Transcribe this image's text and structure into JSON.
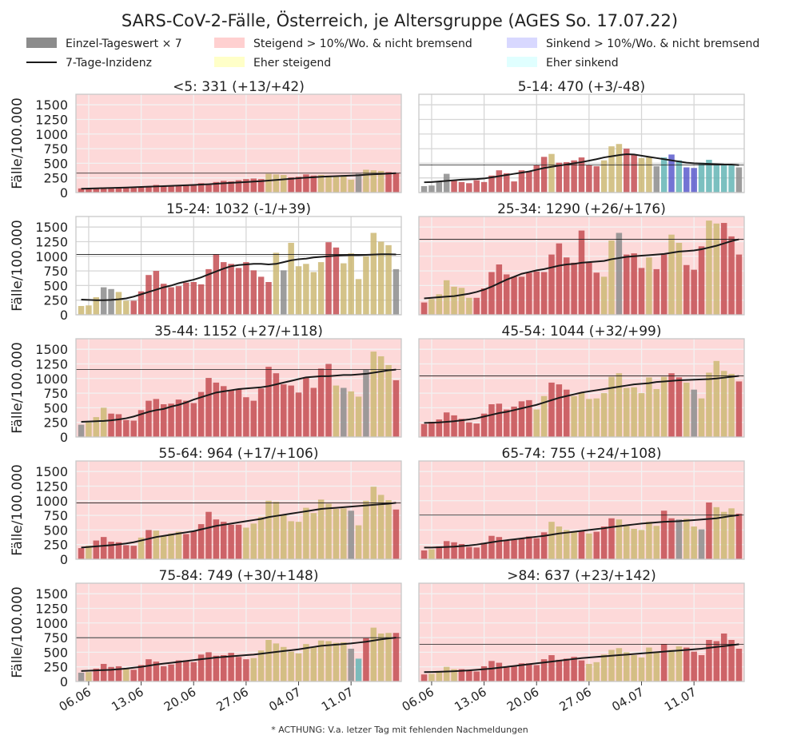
{
  "figure": {
    "title": "SARS-CoV-2-Fälle, Österreich, je Altersgruppe  (AGES So. 17.07.22)",
    "footnote": "* ACTHUNG: V.a. letzer Tag mit fehlenden Nachmeldungen",
    "ylabel": "Fälle/100.000"
  },
  "legend": {
    "bar": "Einzel-Tageswert × 7",
    "line": "7-Tage-Inzidenz",
    "up_strong": "Steigend > 10%/Wo. & nicht bremsend",
    "up_weak": "Eher steigend",
    "down_strong": "Sinkend > 10%/Wo. & nicht bremsend",
    "down_weak": "Eher sinkend"
  },
  "colors": {
    "bg_red": "#fdd9d9",
    "bar_red": "#c44e52",
    "bar_yellow": "#ccb974",
    "bar_blue": "#5a5acc",
    "bar_cyan": "#64b5b5",
    "bar_gray": "#8c8c8c",
    "patch_red": "#ffd0d0",
    "patch_yellow": "#ffffc8",
    "patch_blue": "#d8d8ff",
    "patch_cyan": "#e0ffff",
    "line": "#1a1a1a"
  },
  "chart_data": {
    "type": "bar",
    "x_ticks": [
      "06.06",
      "13.06",
      "20.06",
      "27.06",
      "04.07",
      "11.07"
    ],
    "dates": [
      "05.06",
      "06.06",
      "07.06",
      "08.06",
      "09.06",
      "10.06",
      "11.06",
      "12.06",
      "13.06",
      "14.06",
      "15.06",
      "16.06",
      "17.06",
      "18.06",
      "19.06",
      "20.06",
      "21.06",
      "22.06",
      "23.06",
      "24.06",
      "25.06",
      "26.06",
      "27.06",
      "28.06",
      "29.06",
      "30.06",
      "01.07",
      "02.07",
      "03.07",
      "04.07",
      "05.07",
      "06.07",
      "07.07",
      "08.07",
      "09.07",
      "10.07",
      "11.07",
      "12.07",
      "13.07",
      "14.07",
      "15.07",
      "16.07",
      "17.07"
    ],
    "y_ticks": [
      0,
      250,
      500,
      750,
      1000,
      1250,
      1500
    ],
    "ylim": [
      0,
      1680
    ],
    "panels": [
      {
        "label": "<5: 331 (+13/+42)",
        "background": "red",
        "ref": 331,
        "values": [
          70,
          75,
          80,
          85,
          85,
          80,
          80,
          80,
          90,
          100,
          130,
          115,
          110,
          120,
          120,
          140,
          160,
          150,
          180,
          200,
          190,
          210,
          230,
          240,
          230,
          320,
          310,
          300,
          260,
          270,
          310,
          290,
          300,
          290,
          270,
          300,
          220,
          320,
          390,
          380,
          370,
          350,
          330
        ],
        "colors": "rrrrrrrrrrrrrrrrrrrrrrrrryyyrrrryyyyygyyyrr",
        "incidence": [
          65,
          68,
          72,
          75,
          78,
          82,
          86,
          90,
          95,
          100,
          105,
          110,
          115,
          120,
          125,
          130,
          136,
          142,
          150,
          158,
          165,
          172,
          180,
          188,
          195,
          205,
          215,
          225,
          235,
          245,
          255,
          262,
          270,
          275,
          280,
          285,
          290,
          295,
          305,
          312,
          318,
          325,
          331
        ]
      },
      {
        "label": "5-14: 470 (+3/-48)",
        "background": "white",
        "ref": 470,
        "values": [
          110,
          120,
          190,
          320,
          200,
          180,
          160,
          210,
          180,
          290,
          380,
          330,
          190,
          380,
          360,
          470,
          610,
          660,
          510,
          520,
          550,
          600,
          470,
          450,
          550,
          790,
          830,
          750,
          650,
          590,
          600,
          450,
          600,
          650,
          550,
          430,
          420,
          510,
          560,
          470,
          470,
          470,
          430
        ],
        "colors": "ggggrrrrrrrrrrrrryrrrrrryyyrryygcbcbbcccccg",
        "incidence": [
          175,
          180,
          190,
          200,
          210,
          220,
          225,
          230,
          240,
          260,
          280,
          300,
          320,
          340,
          360,
          390,
          420,
          440,
          460,
          480,
          500,
          520,
          545,
          570,
          600,
          620,
          640,
          655,
          650,
          630,
          610,
          590,
          570,
          550,
          530,
          510,
          500,
          495,
          490,
          485,
          480,
          478,
          470
        ]
      },
      {
        "label": "15-24: 1032 (-1/+39)",
        "background": "white",
        "ref": 1032,
        "values": [
          150,
          160,
          300,
          470,
          440,
          390,
          240,
          240,
          400,
          680,
          750,
          530,
          470,
          490,
          550,
          560,
          520,
          780,
          1030,
          900,
          870,
          800,
          900,
          760,
          650,
          560,
          1060,
          760,
          1230,
          830,
          870,
          730,
          900,
          1240,
          1150,
          880,
          1050,
          610,
          1000,
          1400,
          1250,
          1190,
          780
        ],
        "colors": "yyyggyyrrrrrrrrrrrrrrrrrrrygyyyyyrryyyyyyyg",
        "incidence": [
          260,
          255,
          250,
          250,
          255,
          265,
          280,
          310,
          350,
          390,
          430,
          470,
          500,
          540,
          570,
          600,
          640,
          690,
          740,
          790,
          830,
          850,
          860,
          870,
          870,
          860,
          870,
          900,
          930,
          950,
          960,
          980,
          990,
          1000,
          1010,
          1015,
          1020,
          1020,
          1025,
          1030,
          1035,
          1035,
          1032
        ]
      },
      {
        "label": "25-34: 1290 (+26/+176)",
        "background": "red",
        "ref": 1290,
        "values": [
          210,
          270,
          350,
          590,
          480,
          460,
          290,
          290,
          450,
          730,
          860,
          690,
          650,
          650,
          720,
          740,
          730,
          1030,
          1220,
          980,
          890,
          1440,
          890,
          720,
          650,
          1270,
          1400,
          1030,
          1050,
          800,
          980,
          780,
          1030,
          1370,
          1230,
          850,
          770,
          1170,
          1610,
          1560,
          1570,
          1340,
          1030
        ],
        "colors": "ryyyyyyrrrrrrrrrrrrrrrrryygrrryrryyrrryyrrr",
        "incidence": [
          280,
          290,
          300,
          310,
          320,
          340,
          360,
          390,
          430,
          480,
          540,
          600,
          650,
          700,
          730,
          760,
          780,
          810,
          840,
          860,
          870,
          890,
          900,
          910,
          920,
          950,
          970,
          990,
          1000,
          1010,
          1020,
          1030,
          1040,
          1060,
          1080,
          1090,
          1100,
          1120,
          1150,
          1180,
          1220,
          1260,
          1290
        ]
      },
      {
        "label": "35-44: 1152 (+27/+118)",
        "background": "red",
        "ref": 1152,
        "values": [
          210,
          250,
          340,
          500,
          400,
          390,
          290,
          280,
          460,
          620,
          650,
          560,
          570,
          640,
          620,
          580,
          770,
          1010,
          930,
          870,
          800,
          820,
          680,
          620,
          830,
          1200,
          1090,
          900,
          880,
          760,
          1010,
          840,
          1170,
          1250,
          880,
          840,
          780,
          690,
          1150,
          1460,
          1380,
          1230,
          970
        ],
        "colors": "gyyyrrrrrrrrrrrrrrrrrrrrrrrrrrrrrrygyygyyyr",
        "incidence": [
          260,
          265,
          270,
          275,
          285,
          300,
          320,
          350,
          390,
          430,
          460,
          480,
          520,
          550,
          590,
          640,
          680,
          720,
          760,
          780,
          800,
          820,
          830,
          840,
          850,
          870,
          900,
          930,
          960,
          990,
          1020,
          1030,
          1040,
          1040,
          1050,
          1060,
          1060,
          1070,
          1080,
          1100,
          1120,
          1140,
          1152
        ]
      },
      {
        "label": "45-54: 1044 (+32/+99)",
        "background": "red",
        "ref": 1044,
        "values": [
          220,
          260,
          300,
          420,
          370,
          310,
          250,
          230,
          400,
          560,
          570,
          470,
          520,
          610,
          630,
          470,
          700,
          930,
          900,
          810,
          700,
          760,
          650,
          660,
          750,
          1030,
          1090,
          840,
          850,
          750,
          1020,
          820,
          1030,
          1090,
          1020,
          930,
          810,
          660,
          1100,
          1300,
          1130,
          1080,
          950
        ],
        "colors": "rrrrrrrrrrrrrrryyrrryyyyyyyyyyyyyrrygyyyyyr",
        "incidence": [
          240,
          245,
          250,
          260,
          270,
          285,
          300,
          320,
          350,
          380,
          410,
          430,
          460,
          490,
          520,
          550,
          590,
          630,
          670,
          700,
          730,
          760,
          780,
          800,
          820,
          840,
          860,
          880,
          900,
          910,
          920,
          940,
          950,
          960,
          970,
          975,
          980,
          985,
          990,
          1000,
          1015,
          1030,
          1044
        ]
      },
      {
        "label": "55-64: 964 (+17/+106)",
        "background": "red",
        "ref": 964,
        "values": [
          190,
          230,
          320,
          380,
          300,
          290,
          240,
          230,
          370,
          500,
          490,
          400,
          440,
          470,
          430,
          480,
          600,
          810,
          680,
          640,
          590,
          590,
          540,
          610,
          720,
          1000,
          980,
          760,
          650,
          640,
          880,
          790,
          1020,
          950,
          860,
          870,
          830,
          580,
          1000,
          1240,
          1100,
          1010,
          850
        ],
        "colors": "ryrrrrrryryyyyrrrrrrrryyyyyyyyyyyyyygyyyyyr",
        "incidence": [
          200,
          210,
          220,
          230,
          240,
          255,
          270,
          290,
          320,
          350,
          380,
          400,
          420,
          440,
          460,
          480,
          510,
          540,
          570,
          590,
          610,
          630,
          650,
          670,
          690,
          720,
          740,
          760,
          780,
          800,
          820,
          840,
          860,
          870,
          880,
          890,
          900,
          910,
          920,
          930,
          940,
          950,
          964
        ]
      },
      {
        "label": "65-74: 755 (+24/+108)",
        "background": "red",
        "ref": 755,
        "values": [
          150,
          170,
          220,
          310,
          290,
          260,
          210,
          200,
          280,
          400,
          380,
          320,
          330,
          360,
          390,
          360,
          460,
          640,
          560,
          500,
          470,
          480,
          440,
          470,
          560,
          700,
          680,
          570,
          520,
          500,
          640,
          570,
          830,
          700,
          680,
          690,
          560,
          510,
          970,
          890,
          810,
          870,
          780
        ],
        "colors": "ryrrrrrrrrrrrrrrryyyyryrrryyyyyyrrgyygryyyr",
        "incidence": [
          200,
          200,
          205,
          210,
          215,
          225,
          235,
          250,
          270,
          290,
          310,
          325,
          340,
          355,
          370,
          385,
          400,
          420,
          440,
          455,
          470,
          485,
          500,
          515,
          530,
          550,
          565,
          580,
          595,
          610,
          620,
          630,
          640,
          645,
          650,
          660,
          670,
          680,
          690,
          700,
          720,
          740,
          755
        ]
      },
      {
        "label": "75-84: 749 (+30/+148)",
        "background": "red",
        "ref": 749,
        "values": [
          150,
          160,
          220,
          300,
          250,
          260,
          220,
          200,
          280,
          380,
          340,
          260,
          290,
          360,
          360,
          330,
          460,
          500,
          440,
          450,
          490,
          420,
          380,
          400,
          530,
          710,
          650,
          590,
          510,
          480,
          640,
          590,
          700,
          690,
          660,
          670,
          560,
          390,
          740,
          920,
          820,
          830,
          830
        ],
        "colors": "gyrrrryrrrrrrrrrrrrrrrryyyyyyyyyyyyygcryyyr",
        "incidence": [
          180,
          185,
          190,
          195,
          200,
          210,
          220,
          235,
          250,
          270,
          290,
          305,
          320,
          335,
          350,
          365,
          380,
          395,
          410,
          420,
          430,
          440,
          450,
          460,
          475,
          490,
          505,
          520,
          535,
          550,
          570,
          590,
          610,
          620,
          630,
          640,
          650,
          665,
          680,
          700,
          720,
          735,
          749
        ]
      },
      {
        "label": ">84: 637 (+23/+142)",
        "background": "red",
        "ref": 637,
        "values": [
          120,
          130,
          180,
          250,
          210,
          210,
          180,
          170,
          260,
          350,
          320,
          250,
          260,
          310,
          310,
          280,
          380,
          450,
          370,
          390,
          420,
          360,
          300,
          330,
          460,
          540,
          570,
          500,
          450,
          410,
          580,
          500,
          640,
          540,
          600,
          580,
          510,
          450,
          710,
          690,
          820,
          710,
          560
        ],
        "colors": "ryyyyrrrrrrrrrrrrrrrrryyyyyyyyyyryyrrrrrrrr",
        "incidence": [
          160,
          162,
          165,
          170,
          175,
          182,
          190,
          200,
          210,
          220,
          235,
          250,
          265,
          280,
          295,
          310,
          325,
          340,
          355,
          370,
          385,
          400,
          410,
          420,
          430,
          440,
          450,
          460,
          470,
          480,
          490,
          500,
          510,
          520,
          530,
          540,
          550,
          560,
          575,
          590,
          605,
          620,
          637
        ]
      }
    ]
  }
}
